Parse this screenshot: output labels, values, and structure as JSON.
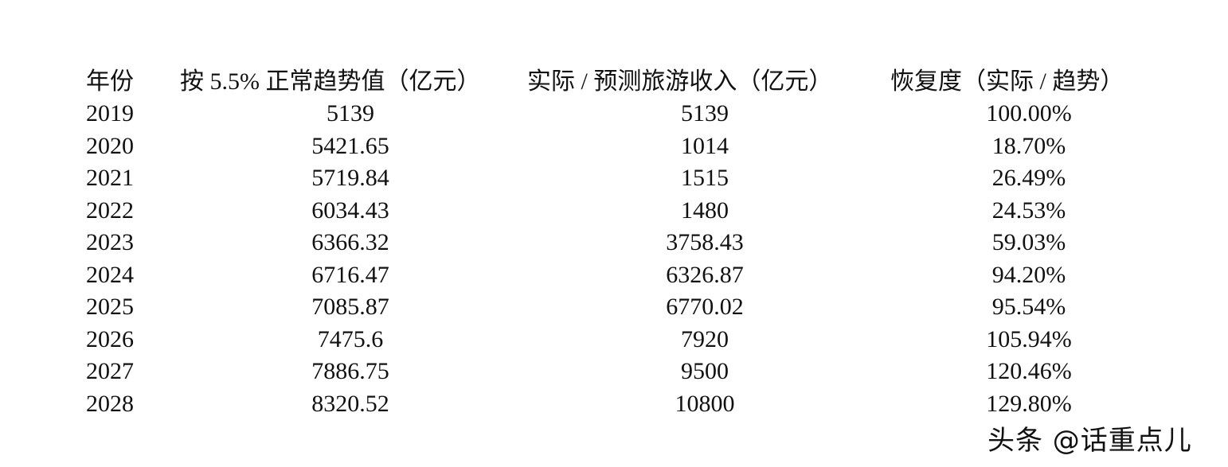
{
  "table": {
    "headers": [
      "年份",
      "按 5.5% 正常趋势值（亿元）",
      "实际 / 预测旅游收入（亿元）",
      "恢复度（实际 / 趋势）"
    ],
    "rows": [
      [
        "2019",
        "5139",
        "5139",
        "100.00%"
      ],
      [
        "2020",
        "5421.65",
        "1014",
        "18.70%"
      ],
      [
        "2021",
        "5719.84",
        "1515",
        "26.49%"
      ],
      [
        "2022",
        "6034.43",
        "1480",
        "24.53%"
      ],
      [
        "2023",
        "6366.32",
        "3758.43",
        "59.03%"
      ],
      [
        "2024",
        "6716.47",
        "6326.87",
        "94.20%"
      ],
      [
        "2025",
        "7085.87",
        "6770.02",
        "95.54%"
      ],
      [
        "2026",
        "7475.6",
        "7920",
        "105.94%"
      ],
      [
        "2027",
        "7886.75",
        "9500",
        "120.46%"
      ],
      [
        "2028",
        "8320.52",
        "10800",
        "129.80%"
      ]
    ]
  },
  "watermark": "头条 @话重点儿"
}
